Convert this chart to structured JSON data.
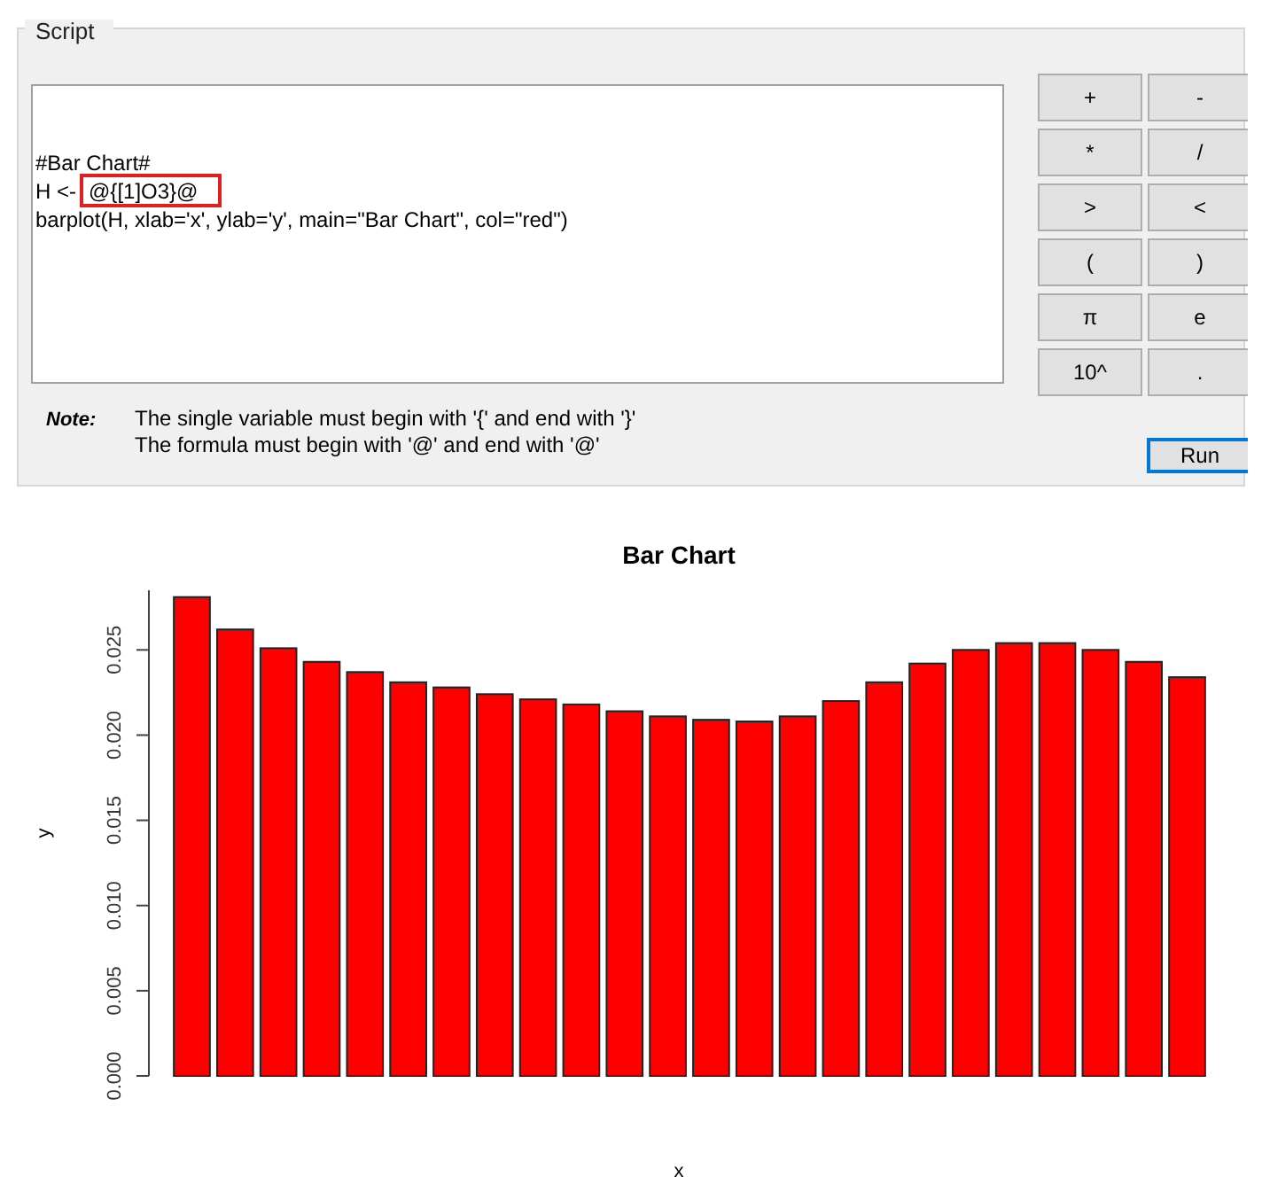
{
  "chart_data": [
    {
      "type": "other",
      "title": "Script",
      "annotations": [
        "#Bar Chart#",
        "H <-",
        "@{[1]O3}@",
        "barplot(H, xlab='x', ylab='y', main=\"Bar Chart\",  col=\"red\")",
        "Note:",
        "The single variable must begin with '{' and end with '}'",
        "The formula must begin with '@' and end with '@'",
        "+",
        "-",
        "*",
        "/",
        ">",
        "<",
        "(",
        ")",
        "π",
        "e",
        "10^",
        ".",
        "Run"
      ]
    },
    {
      "type": "bar",
      "title": "Bar Chart",
      "xlabel": "x",
      "ylabel": "y",
      "color": "#ff0000",
      "grid": false,
      "categories": [
        null,
        null,
        null,
        null,
        null,
        null,
        null,
        null,
        null,
        null,
        null,
        null,
        null,
        null,
        null,
        null,
        null,
        null,
        null,
        null,
        null,
        null,
        null,
        null
      ],
      "values": [
        0.0281,
        0.0262,
        0.0251,
        0.0243,
        0.0237,
        0.0231,
        0.0228,
        0.0224,
        0.0221,
        0.0218,
        0.0214,
        0.0211,
        0.0209,
        0.0208,
        0.0211,
        0.022,
        0.0231,
        0.0242,
        0.025,
        0.0254,
        0.0254,
        0.025,
        0.0243,
        0.0234
      ],
      "ylim": [
        0,
        0.0285
      ],
      "yticks": [
        {
          "value": 0,
          "label": "0.000"
        },
        {
          "value": 0.005,
          "label": "0.005"
        },
        {
          "value": 0.01,
          "label": "0.010"
        },
        {
          "value": 0.015,
          "label": "0.015"
        },
        {
          "value": 0.02,
          "label": "0.020"
        },
        {
          "value": 0.025,
          "label": "0.025"
        }
      ]
    }
  ]
}
